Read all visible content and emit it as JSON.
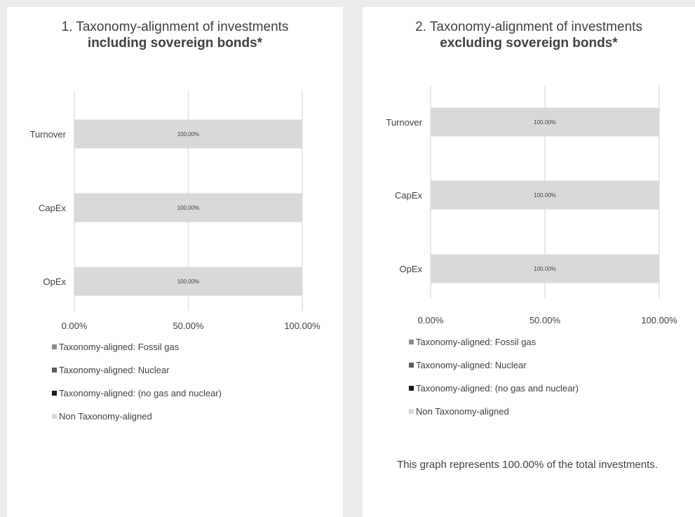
{
  "chart_data": [
    {
      "type": "bar",
      "orientation": "horizontal",
      "stacked": true,
      "title": "1. Taxonomy-alignment of investments",
      "subtitle": "including sovereign bonds*",
      "categories": [
        "Turnover",
        "CapEx",
        "OpEx"
      ],
      "series": [
        {
          "name": "Taxonomy-aligned: Fossil gas",
          "color": "#8c8c8c",
          "values": [
            0,
            0,
            0
          ]
        },
        {
          "name": "Taxonomy-aligned: Nuclear",
          "color": "#5a5a5a",
          "values": [
            0,
            0,
            0
          ]
        },
        {
          "name": "Taxonomy-aligned: (no gas and nuclear)",
          "color": "#1a1a1a",
          "values": [
            0,
            0,
            0
          ]
        },
        {
          "name": "Non Taxonomy-aligned",
          "color": "#d9d9d9",
          "values": [
            100,
            100,
            100
          ]
        }
      ],
      "data_labels": [
        "100.00%",
        "100.00%",
        "100.00%"
      ],
      "xlim": [
        0,
        100
      ],
      "xticks": [
        0,
        50,
        100
      ],
      "xtick_labels": [
        "0.00%",
        "50.00%",
        "100.00%"
      ],
      "grid": true,
      "legend_position": "bottom"
    },
    {
      "type": "bar",
      "orientation": "horizontal",
      "stacked": true,
      "title": "2. Taxonomy-alignment of investments",
      "subtitle": "excluding sovereign bonds*",
      "categories": [
        "Turnover",
        "CapEx",
        "OpEx"
      ],
      "series": [
        {
          "name": "Taxonomy-aligned: Fossil gas",
          "color": "#8c8c8c",
          "values": [
            0,
            0,
            0
          ]
        },
        {
          "name": "Taxonomy-aligned: Nuclear",
          "color": "#5a5a5a",
          "values": [
            0,
            0,
            0
          ]
        },
        {
          "name": "Taxonomy-aligned: (no gas and nuclear)",
          "color": "#1a1a1a",
          "values": [
            0,
            0,
            0
          ]
        },
        {
          "name": "Non Taxonomy-aligned",
          "color": "#d9d9d9",
          "values": [
            100,
            100,
            100
          ]
        }
      ],
      "data_labels": [
        "100.00%",
        "100.00%",
        "100.00%"
      ],
      "xlim": [
        0,
        100
      ],
      "xticks": [
        0,
        50,
        100
      ],
      "xtick_labels": [
        "0.00%",
        "50.00%",
        "100.00%"
      ],
      "grid": true,
      "legend_position": "bottom",
      "footnote": "This graph represents 100.00% of the total investments."
    }
  ]
}
